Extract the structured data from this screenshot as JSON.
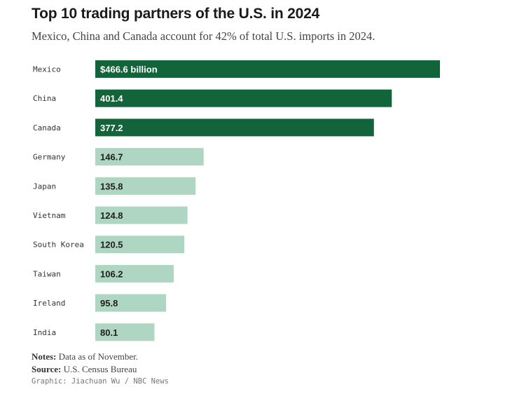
{
  "title": "Top 10 trading partners of the U.S. in 2024",
  "subtitle": "Mexico, China and Canada account for 42% of total U.S. imports in 2024.",
  "chart_data": {
    "type": "bar",
    "orientation": "horizontal",
    "categories": [
      "Mexico",
      "China",
      "Canada",
      "Germany",
      "Japan",
      "Vietnam",
      "South Korea",
      "Taiwan",
      "Ireland",
      "India"
    ],
    "values": [
      466.6,
      401.4,
      377.2,
      146.7,
      135.8,
      124.8,
      120.5,
      106.2,
      95.8,
      80.1
    ],
    "value_labels": [
      "$466.6 billion",
      "401.4",
      "377.2",
      "146.7",
      "135.8",
      "124.8",
      "120.5",
      "106.2",
      "95.8",
      "80.1"
    ],
    "highlighted": [
      true,
      true,
      true,
      false,
      false,
      false,
      false,
      false,
      false,
      false
    ],
    "unit": "billion USD",
    "xlim": [
      0,
      466.6
    ]
  },
  "colors": {
    "highlight": "#13643a",
    "normal": "#aed6c2",
    "highlight_text": "#ffffff",
    "normal_text": "#1f1f1f"
  },
  "notes": {
    "label": "Notes:",
    "text": "Data as of November."
  },
  "source": {
    "label": "Source:",
    "text": "U.S. Census Bureau"
  },
  "credit": "Graphic: Jiachuan Wu / NBC News"
}
